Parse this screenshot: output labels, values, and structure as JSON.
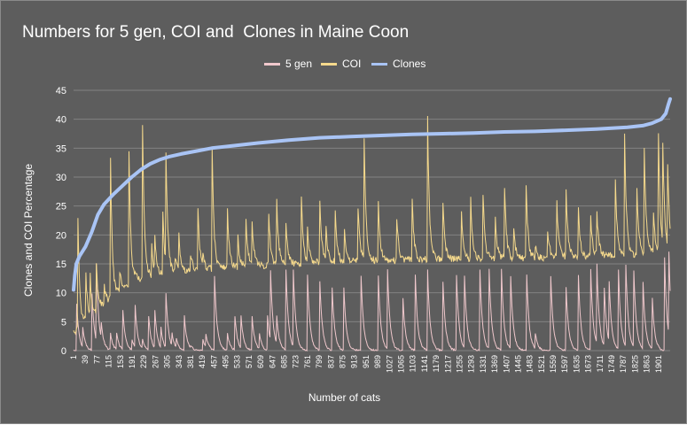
{
  "chart_data": {
    "type": "line",
    "title": "Numbers for 5 gen, COI and  Clones in Maine Coon",
    "xlabel": "Number of cats",
    "ylabel": "Clones and COI Percentage",
    "ylim": [
      0,
      45
    ],
    "yticks": [
      0,
      5,
      10,
      15,
      20,
      25,
      30,
      35,
      40,
      45
    ],
    "xlim": [
      1,
      1939
    ],
    "xticks": [
      1,
      39,
      77,
      115,
      153,
      191,
      229,
      267,
      305,
      343,
      381,
      419,
      457,
      495,
      533,
      571,
      609,
      647,
      685,
      723,
      761,
      799,
      837,
      875,
      913,
      951,
      989,
      1027,
      1065,
      1103,
      1141,
      1179,
      1217,
      1255,
      1293,
      1331,
      1369,
      1407,
      1445,
      1483,
      1521,
      1559,
      1597,
      1635,
      1673,
      1711,
      1749,
      1787,
      1825,
      1863,
      1901
    ],
    "gridlines": true,
    "legend_position": "top",
    "series": [
      {
        "name": "5 gen",
        "color": "#f0c8cc",
        "baseline": 0,
        "spikes": [
          [
            10,
            8
          ],
          [
            30,
            4
          ],
          [
            60,
            10
          ],
          [
            75,
            15
          ],
          [
            90,
            5
          ],
          [
            120,
            3
          ],
          [
            140,
            3
          ],
          [
            160,
            7
          ],
          [
            190,
            2
          ],
          [
            200,
            8
          ],
          [
            225,
            2
          ],
          [
            245,
            6
          ],
          [
            265,
            7
          ],
          [
            285,
            4
          ],
          [
            300,
            10
          ],
          [
            320,
            3
          ],
          [
            335,
            2
          ],
          [
            360,
            6
          ],
          [
            380,
            1
          ],
          [
            420,
            2
          ],
          [
            430,
            3
          ],
          [
            458,
            13
          ],
          [
            500,
            3
          ],
          [
            525,
            6
          ],
          [
            545,
            6
          ],
          [
            580,
            6
          ],
          [
            605,
            3
          ],
          [
            630,
            6
          ],
          [
            640,
            14
          ],
          [
            660,
            6
          ],
          [
            690,
            14
          ],
          [
            715,
            14
          ],
          [
            760,
            13
          ],
          [
            800,
            12
          ],
          [
            840,
            11
          ],
          [
            878,
            11
          ],
          [
            935,
            13
          ],
          [
            990,
            13
          ],
          [
            1020,
            14
          ],
          [
            1070,
            9
          ],
          [
            1110,
            13
          ],
          [
            1150,
            14
          ],
          [
            1200,
            12
          ],
          [
            1245,
            13
          ],
          [
            1270,
            13
          ],
          [
            1320,
            14
          ],
          [
            1350,
            14
          ],
          [
            1390,
            14
          ],
          [
            1420,
            13
          ],
          [
            1472,
            13
          ],
          [
            1500,
            3
          ],
          [
            1550,
            13
          ],
          [
            1600,
            11
          ],
          [
            1640,
            13
          ],
          [
            1680,
            14
          ],
          [
            1700,
            15
          ],
          [
            1725,
            11
          ],
          [
            1740,
            12
          ],
          [
            1770,
            14
          ],
          [
            1795,
            15
          ],
          [
            1820,
            14
          ],
          [
            1850,
            12
          ],
          [
            1880,
            9
          ],
          [
            1920,
            16
          ],
          [
            1935,
            17
          ]
        ]
      },
      {
        "name": "COI",
        "color": "#f5d98c",
        "trend": [
          [
            1,
            3
          ],
          [
            40,
            5
          ],
          [
            100,
            8
          ],
          [
            150,
            10
          ],
          [
            200,
            12
          ],
          [
            260,
            13
          ],
          [
            330,
            13.5
          ],
          [
            420,
            14
          ],
          [
            550,
            14.5
          ],
          [
            700,
            15
          ],
          [
            900,
            15.5
          ],
          [
            1100,
            15.7
          ],
          [
            1500,
            16
          ],
          [
            1800,
            16.5
          ],
          [
            1939,
            17
          ]
        ],
        "spikes": [
          [
            15,
            23
          ],
          [
            40,
            13
          ],
          [
            55,
            13
          ],
          [
            75,
            15
          ],
          [
            100,
            11
          ],
          [
            120,
            33
          ],
          [
            150,
            14
          ],
          [
            180,
            34.5
          ],
          [
            200,
            14
          ],
          [
            225,
            39
          ],
          [
            255,
            18
          ],
          [
            265,
            20
          ],
          [
            290,
            24
          ],
          [
            300,
            34.5
          ],
          [
            330,
            16
          ],
          [
            342,
            20
          ],
          [
            380,
            17
          ],
          [
            405,
            24.5
          ],
          [
            420,
            17
          ],
          [
            450,
            35
          ],
          [
            500,
            24.5
          ],
          [
            535,
            19.5
          ],
          [
            560,
            23
          ],
          [
            580,
            22.5
          ],
          [
            635,
            24
          ],
          [
            660,
            26
          ],
          [
            690,
            22
          ],
          [
            740,
            26.5
          ],
          [
            760,
            21
          ],
          [
            800,
            26
          ],
          [
            820,
            22
          ],
          [
            850,
            24
          ],
          [
            880,
            21
          ],
          [
            925,
            25
          ],
          [
            945,
            37
          ],
          [
            990,
            26
          ],
          [
            1050,
            23
          ],
          [
            1100,
            26
          ],
          [
            1150,
            40.5
          ],
          [
            1200,
            26
          ],
          [
            1260,
            24.5
          ],
          [
            1290,
            26
          ],
          [
            1330,
            27.5
          ],
          [
            1370,
            23
          ],
          [
            1400,
            28.5
          ],
          [
            1430,
            21
          ],
          [
            1470,
            28.5
          ],
          [
            1500,
            18
          ],
          [
            1540,
            21
          ],
          [
            1570,
            25.5
          ],
          [
            1600,
            28
          ],
          [
            1640,
            24.5
          ],
          [
            1680,
            23
          ],
          [
            1700,
            24
          ],
          [
            1760,
            29.5
          ],
          [
            1790,
            37.5
          ],
          [
            1830,
            28
          ],
          [
            1855,
            35.5
          ],
          [
            1885,
            24
          ],
          [
            1900,
            37
          ],
          [
            1915,
            36.5
          ],
          [
            1930,
            32.5
          ]
        ]
      },
      {
        "name": "Clones",
        "color": "#a9c4f5",
        "values": [
          [
            1,
            10.5
          ],
          [
            5,
            13
          ],
          [
            10,
            15
          ],
          [
            20,
            16.3
          ],
          [
            40,
            18
          ],
          [
            60,
            20.5
          ],
          [
            80,
            23.5
          ],
          [
            100,
            25.3
          ],
          [
            130,
            27
          ],
          [
            160,
            28.5
          ],
          [
            190,
            30
          ],
          [
            220,
            31.3
          ],
          [
            250,
            32.3
          ],
          [
            280,
            33
          ],
          [
            310,
            33.5
          ],
          [
            350,
            34
          ],
          [
            400,
            34.5
          ],
          [
            450,
            35
          ],
          [
            500,
            35.3
          ],
          [
            600,
            35.9
          ],
          [
            700,
            36.4
          ],
          [
            800,
            36.8
          ],
          [
            900,
            37
          ],
          [
            1000,
            37.2
          ],
          [
            1100,
            37.4
          ],
          [
            1200,
            37.5
          ],
          [
            1300,
            37.6
          ],
          [
            1400,
            37.8
          ],
          [
            1500,
            37.9
          ],
          [
            1600,
            38.1
          ],
          [
            1700,
            38.3
          ],
          [
            1800,
            38.6
          ],
          [
            1850,
            38.9
          ],
          [
            1880,
            39.3
          ],
          [
            1910,
            40
          ],
          [
            1925,
            41
          ],
          [
            1933,
            42.5
          ],
          [
            1939,
            43.5
          ]
        ]
      }
    ]
  }
}
